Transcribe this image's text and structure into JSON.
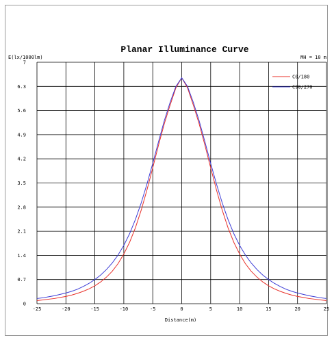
{
  "chart_data": {
    "type": "line",
    "title": "Planar Illuminance Curve",
    "ylabel": "E(lx/1000lm)",
    "xlabel": "Distance(m)",
    "annotation": "MH = 10 m",
    "xlim": [
      -25,
      25
    ],
    "ylim": [
      0,
      7
    ],
    "x_ticks": [
      -25,
      -20,
      -15,
      -10,
      -5,
      0,
      5,
      10,
      15,
      20,
      25
    ],
    "y_ticks": [
      0,
      0.7,
      1.4,
      2.1,
      2.8,
      3.5,
      4.2,
      4.9,
      5.6,
      6.3,
      7
    ],
    "grid": true,
    "legend_position": "top-right",
    "x": [
      -25,
      -24,
      -23,
      -22,
      -21,
      -20,
      -19,
      -18,
      -17,
      -16,
      -15,
      -14,
      -13,
      -12,
      -11,
      -10,
      -9,
      -8,
      -7,
      -6,
      -5,
      -4,
      -3,
      -2,
      -1,
      0,
      1,
      2,
      3,
      4,
      5,
      6,
      7,
      8,
      9,
      10,
      11,
      12,
      13,
      14,
      15,
      16,
      17,
      18,
      19,
      20,
      21,
      22,
      23,
      24,
      25
    ],
    "series": [
      {
        "name": "C0/180",
        "color": "#e8302a",
        "values": [
          0.09,
          0.11,
          0.13,
          0.15,
          0.18,
          0.21,
          0.25,
          0.3,
          0.36,
          0.43,
          0.52,
          0.63,
          0.77,
          0.94,
          1.16,
          1.44,
          1.78,
          2.2,
          2.71,
          3.3,
          3.94,
          4.6,
          5.22,
          5.76,
          6.26,
          6.55,
          6.26,
          5.76,
          5.22,
          4.6,
          3.94,
          3.3,
          2.71,
          2.2,
          1.78,
          1.44,
          1.16,
          0.94,
          0.77,
          0.63,
          0.52,
          0.43,
          0.36,
          0.3,
          0.25,
          0.21,
          0.18,
          0.15,
          0.13,
          0.11,
          0.09
        ]
      },
      {
        "name": "C90/270",
        "color": "#3b3bd6",
        "values": [
          0.15,
          0.17,
          0.2,
          0.23,
          0.27,
          0.31,
          0.36,
          0.42,
          0.5,
          0.59,
          0.7,
          0.83,
          0.99,
          1.18,
          1.41,
          1.69,
          2.03,
          2.44,
          2.92,
          3.47,
          4.07,
          4.7,
          5.31,
          5.84,
          6.3,
          6.55,
          6.3,
          5.84,
          5.31,
          4.7,
          4.07,
          3.47,
          2.92,
          2.44,
          2.03,
          1.69,
          1.41,
          1.18,
          0.99,
          0.83,
          0.7,
          0.59,
          0.5,
          0.42,
          0.36,
          0.31,
          0.27,
          0.23,
          0.2,
          0.17,
          0.15
        ]
      }
    ]
  }
}
